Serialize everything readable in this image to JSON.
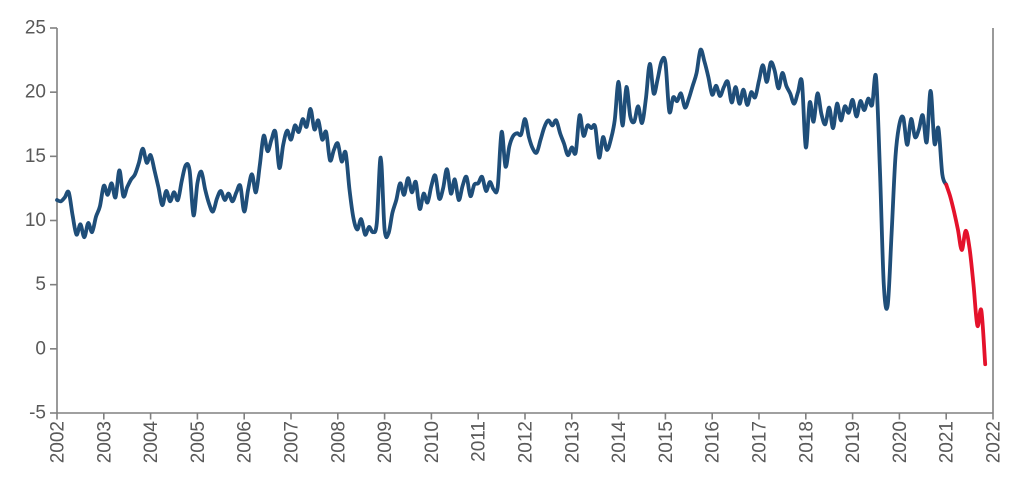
{
  "chart_data": {
    "type": "line",
    "title": "",
    "grid": "off",
    "legend": "none",
    "background": "#ffffff",
    "x_axis": {
      "tick_labels": [
        "2002",
        "2003",
        "2004",
        "2005",
        "2006",
        "2007",
        "2008",
        "2009",
        "2010",
        "2011",
        "2012",
        "2013",
        "2014",
        "2015",
        "2016",
        "2017",
        "2018",
        "2019",
        "2020",
        "2021",
        "2022"
      ],
      "start_year": 2002,
      "end_year": 2022,
      "label_rotation_deg": -90
    },
    "y_axis": {
      "tick_labels": [
        "25",
        "20",
        "15",
        "10",
        "5",
        "0",
        "-5"
      ],
      "min": -5,
      "max": 25,
      "tick_step": 5
    },
    "colors": {
      "main_line": "#1F4E79",
      "highlight_line": "#E4122B",
      "axis": "#808080",
      "tick_text": "#595959"
    },
    "series": [
      {
        "name": "history",
        "color": "#1F4E79",
        "start_year": 2002.0,
        "points_per_year": 12,
        "values": [
          11.6,
          11.5,
          11.8,
          12.2,
          10.4,
          8.9,
          9.7,
          8.7,
          9.8,
          9.1,
          10.3,
          11.1,
          12.7,
          12.0,
          12.9,
          11.8,
          13.9,
          11.9,
          12.6,
          13.2,
          13.6,
          14.5,
          15.6,
          14.5,
          15.1,
          13.9,
          12.6,
          11.2,
          12.3,
          11.5,
          12.2,
          11.6,
          13.1,
          14.3,
          13.9,
          10.4,
          12.9,
          13.8,
          12.4,
          11.3,
          10.7,
          11.7,
          12.3,
          11.6,
          12.1,
          11.5,
          12.2,
          12.7,
          10.7,
          12.4,
          13.6,
          12.2,
          14.3,
          16.6,
          15.4,
          16.3,
          16.9,
          14.1,
          15.9,
          17.0,
          16.3,
          17.4,
          16.9,
          17.9,
          17.3,
          18.7,
          17.1,
          17.8,
          16.3,
          16.9,
          14.7,
          15.5,
          16.0,
          14.6,
          15.3,
          12.4,
          10.2,
          9.3,
          10.1,
          8.9,
          9.5,
          9.1,
          9.8,
          14.9,
          9.3,
          9.0,
          10.6,
          11.6,
          12.9,
          12.0,
          13.3,
          12.2,
          13.0,
          10.9,
          12.1,
          11.4,
          12.7,
          13.5,
          11.7,
          12.5,
          14.0,
          12.1,
          13.2,
          11.6,
          12.7,
          13.4,
          11.9,
          12.8,
          12.9,
          13.4,
          12.3,
          13.0,
          12.4,
          12.6,
          16.9,
          14.2,
          15.8,
          16.6,
          16.8,
          16.7,
          17.9,
          16.5,
          15.6,
          15.3,
          16.3,
          17.3,
          17.8,
          17.4,
          17.8,
          16.8,
          16.0,
          15.1,
          15.7,
          15.3,
          18.2,
          16.6,
          17.4,
          17.2,
          17.3,
          14.9,
          16.5,
          15.5,
          16.3,
          17.8,
          20.8,
          17.4,
          20.4,
          18.1,
          17.7,
          18.9,
          17.6,
          19.5,
          22.2,
          19.9,
          21.0,
          22.4,
          22.3,
          18.5,
          19.6,
          19.3,
          19.9,
          18.8,
          19.5,
          20.5,
          21.5,
          23.3,
          22.4,
          21.2,
          19.8,
          20.5,
          19.7,
          20.4,
          20.8,
          19.2,
          20.4,
          19.1,
          20.2,
          19.0,
          20.0,
          19.6,
          20.9,
          22.1,
          20.8,
          22.3,
          21.7,
          20.3,
          21.5,
          20.5,
          19.9,
          19.1,
          20.0,
          20.8,
          15.7,
          19.2,
          17.7,
          19.9,
          18.3,
          17.5,
          18.8,
          17.2,
          19.1,
          17.8,
          18.9,
          18.4,
          19.4,
          18.1,
          19.3,
          18.6,
          19.5,
          19.0,
          21.2,
          14.0,
          5.0,
          3.4,
          9.0,
          15.0,
          17.5,
          18.0,
          15.9,
          17.9,
          16.5,
          17.1,
          18.2,
          16.1,
          20.1,
          16.0,
          17.2,
          13.6,
          12.8
        ]
      },
      {
        "name": "recent-decline",
        "color": "#E4122B",
        "start_year": 2021.0,
        "points_per_year": 12,
        "values": [
          12.8,
          11.9,
          10.7,
          9.3,
          7.7,
          9.2,
          7.8,
          5.0,
          1.8,
          3.0,
          -1.2
        ]
      }
    ]
  }
}
